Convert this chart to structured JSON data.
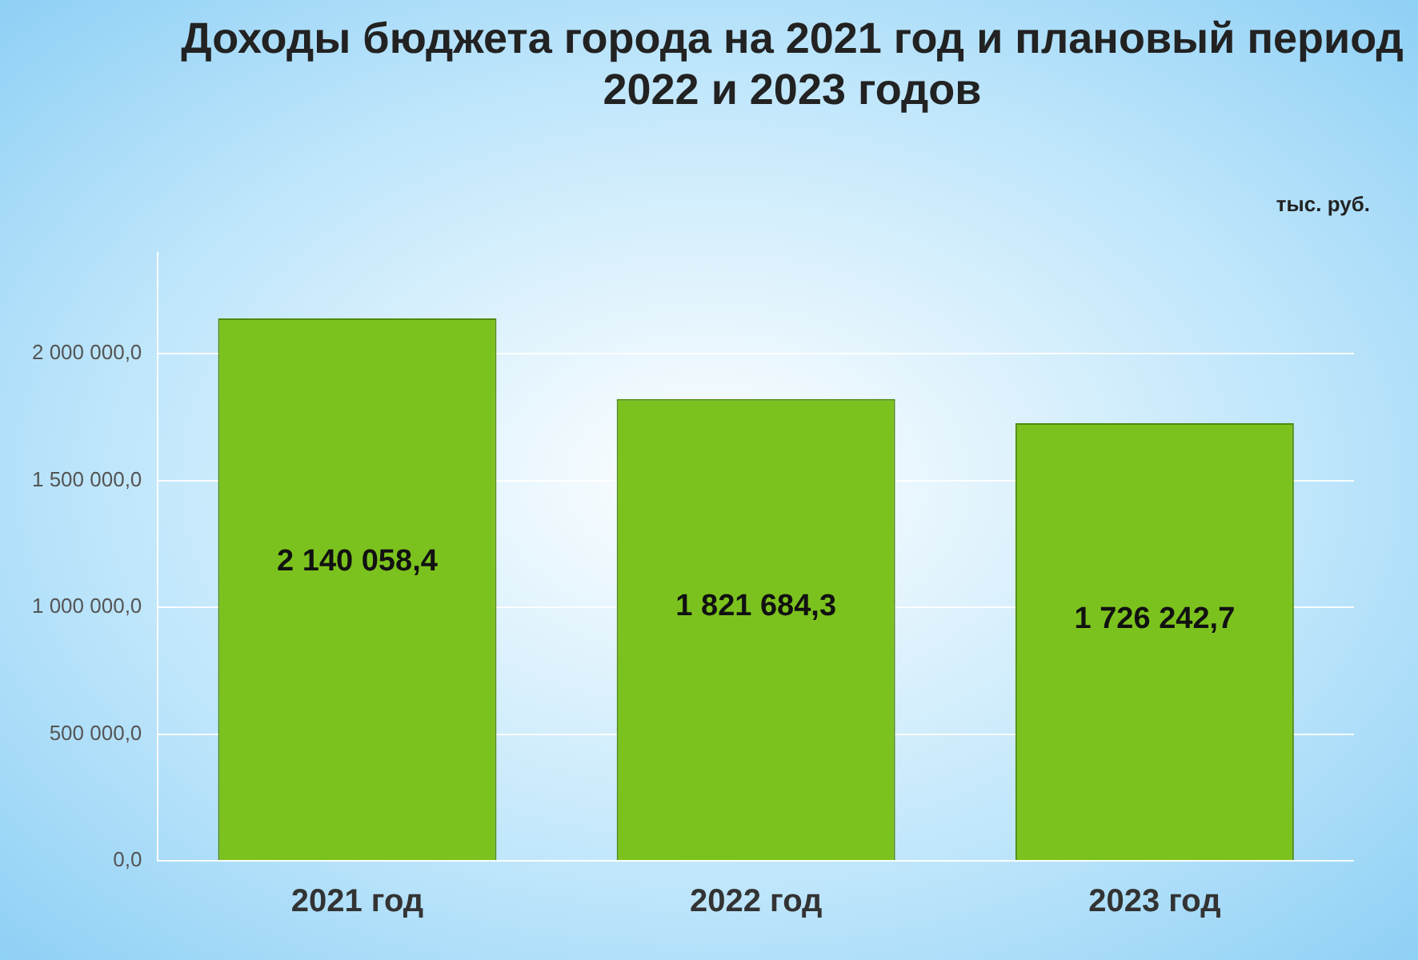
{
  "chart_data": {
    "type": "bar",
    "title": "Доходы бюджета города на 2021 год  и плановый период 2022 и 2023 годов",
    "categories": [
      "2021 год",
      "2022 год",
      "2023 год"
    ],
    "values": [
      2140058.4,
      1821684.3,
      1726242.7
    ],
    "value_labels": [
      "2 140 058,4",
      "1 821 684,3",
      "1 726 242,7"
    ],
    "color": "#7cc21e",
    "ylim": [
      0,
      2400000
    ],
    "yticks": [
      {
        "value": 0,
        "label": "0,0"
      },
      {
        "value": 500000,
        "label": "500 000,0"
      },
      {
        "value": 1000000,
        "label": "1 000 000,0"
      },
      {
        "value": 1500000,
        "label": "1 500 000,0"
      },
      {
        "value": 2000000,
        "label": "2 000 000,0"
      }
    ],
    "grid": "y",
    "legend": false,
    "annotations": [
      "тыс. руб."
    ]
  }
}
